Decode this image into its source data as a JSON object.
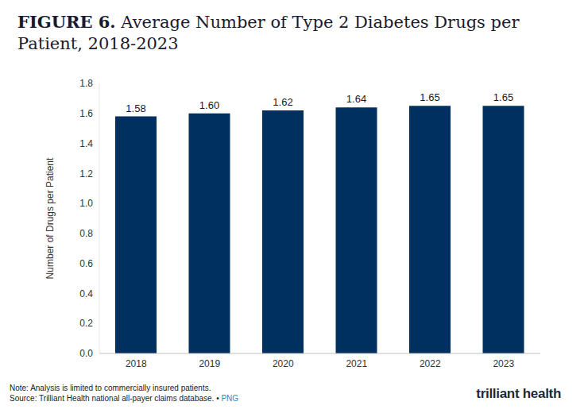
{
  "chart_data": {
    "type": "bar",
    "title": "FIGURE 6. Average Number of Type 2 Diabetes Drugs per Patient, 2018-2023",
    "y_label": "Number of Drugs per Patient",
    "categories": [
      "2018",
      "2019",
      "2020",
      "2021",
      "2022",
      "2023"
    ],
    "values": [
      1.58,
      1.6,
      1.62,
      1.64,
      1.65,
      1.65
    ],
    "value_labels": [
      "1.58",
      "1.60",
      "1.62",
      "1.64",
      "1.65",
      "1.65"
    ],
    "data_labels": true,
    "color": "#00305f",
    "ylim": [
      0,
      1.8
    ],
    "yticks": [
      {
        "value": 0,
        "label": "0.0"
      },
      0.2,
      0.4,
      0.6,
      0.8,
      {
        "value": 1,
        "label": "1.0"
      },
      1.2,
      1.4,
      1.6,
      1.8
    ],
    "grid": false,
    "note": "Note: Analysis is limited to commercially insured patients.",
    "source": "Source: Trilliant Health national all-payer claims database. •",
    "link": "PNG",
    "logo": "trilliant health"
  }
}
